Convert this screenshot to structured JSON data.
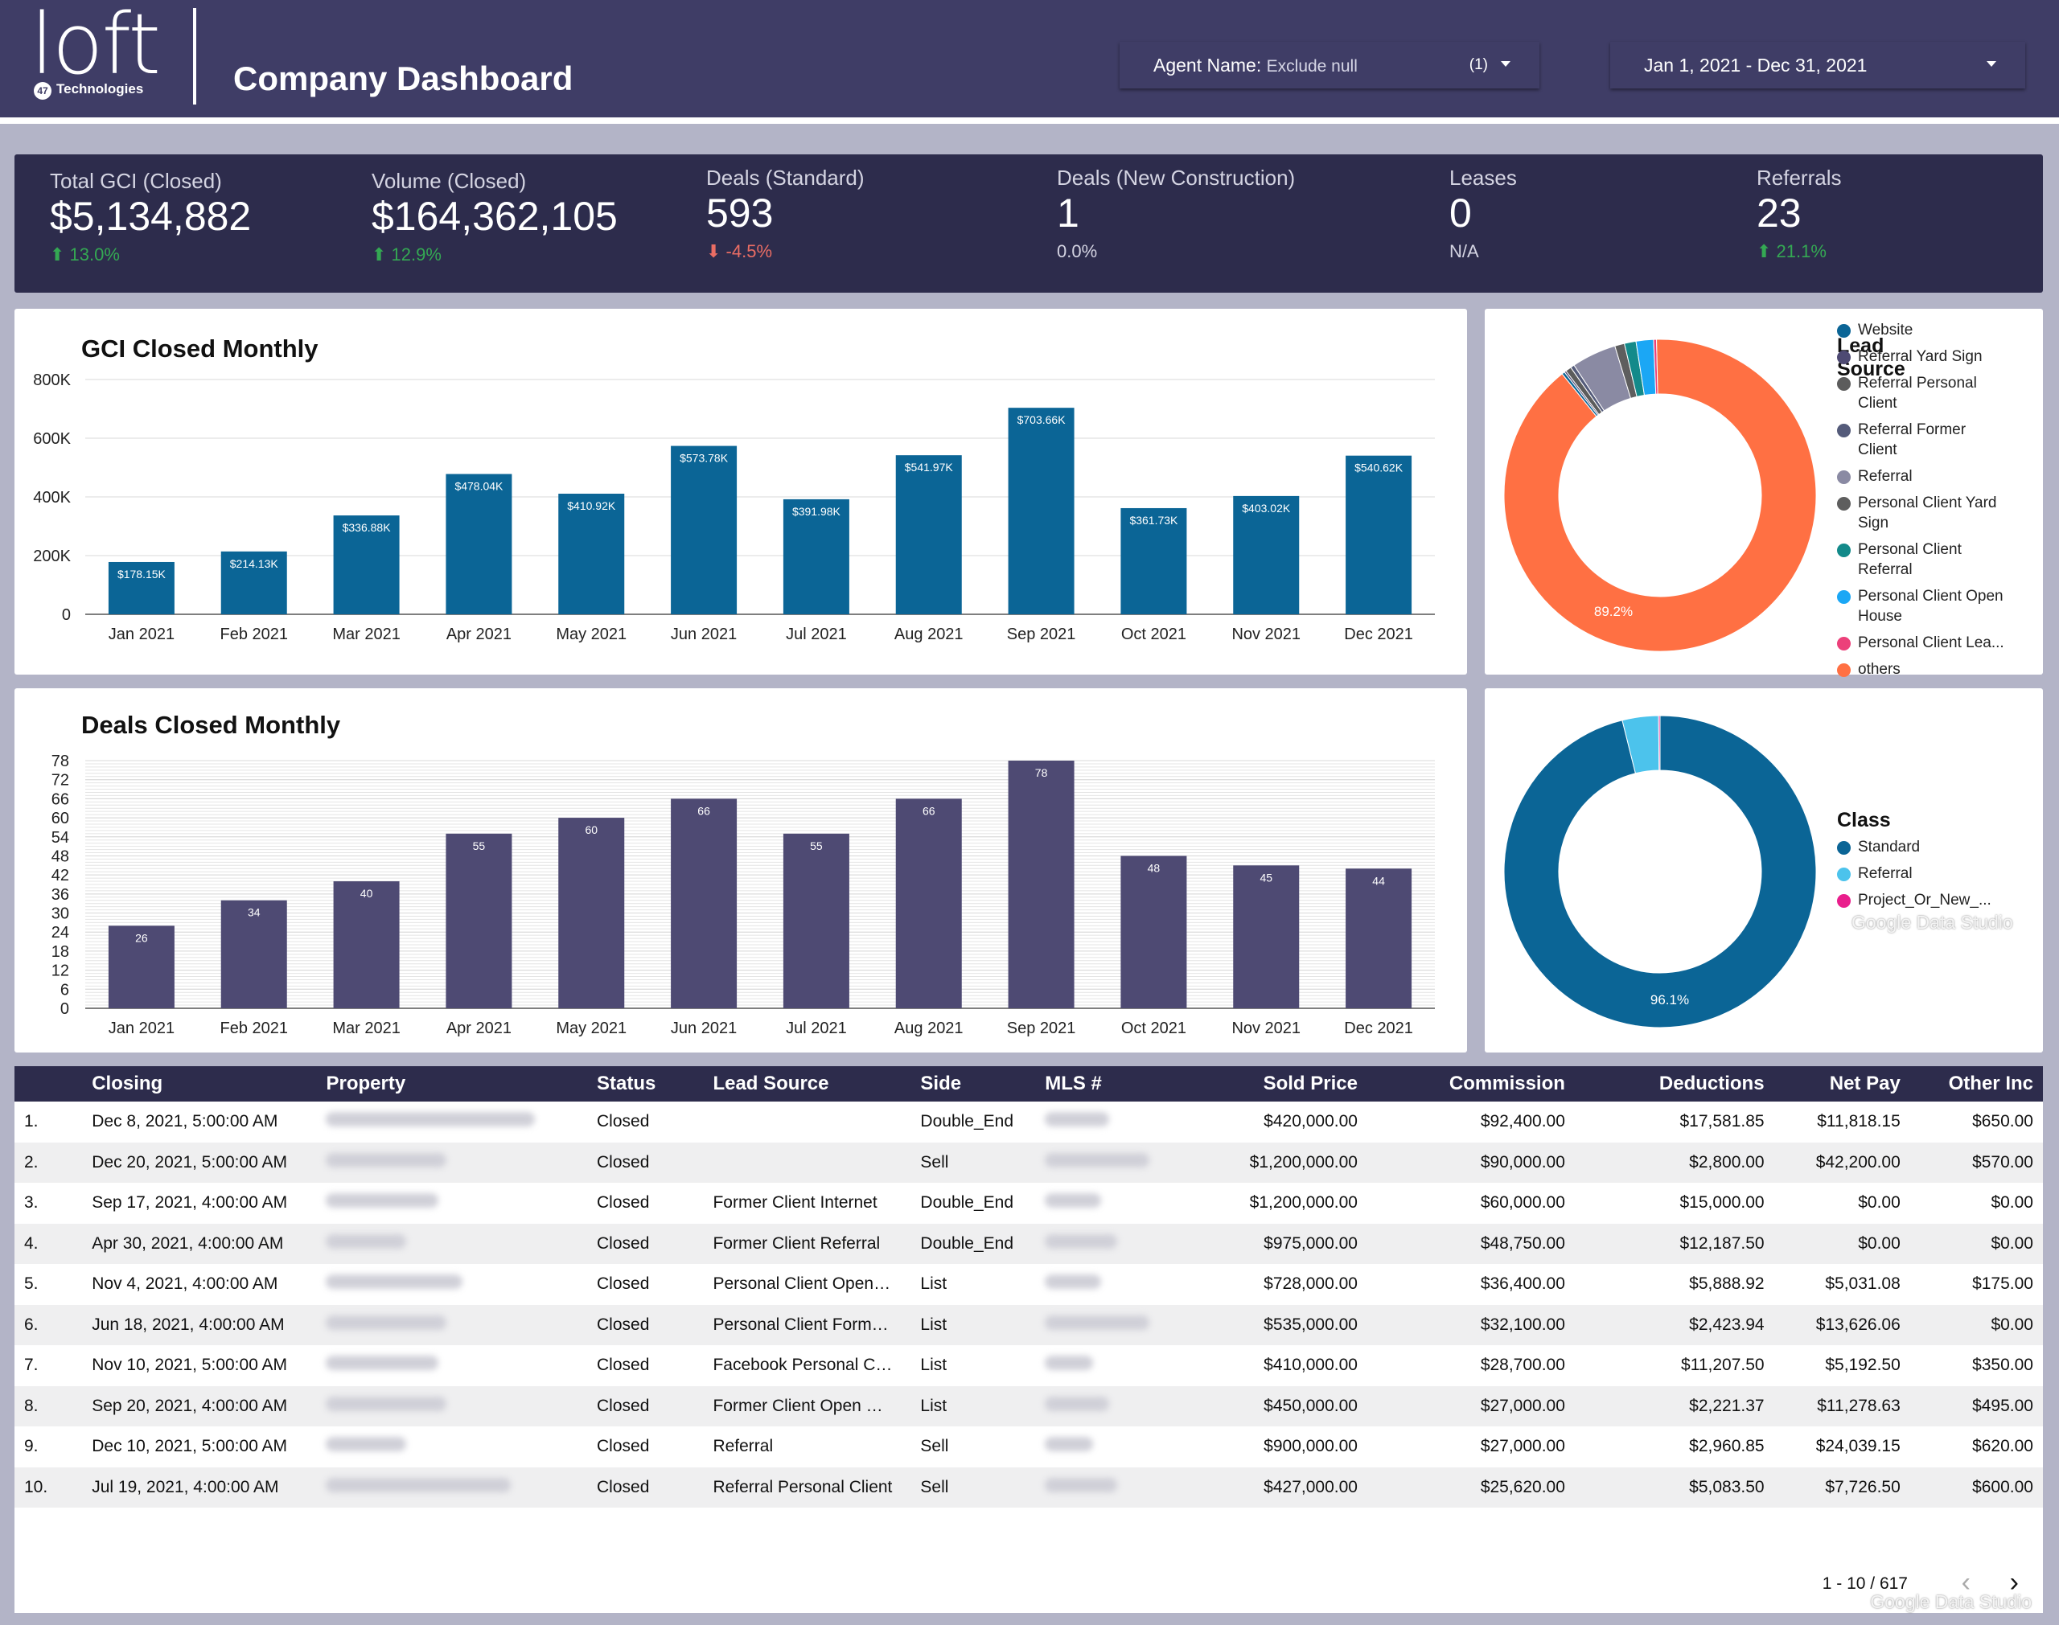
{
  "header": {
    "logo_text": "loft",
    "logo_badge": "47",
    "logo_subtitle": "Technologies",
    "title": "Company Dashboard",
    "agent_filter_label": "Agent Name:",
    "agent_filter_value": "Exclude null",
    "agent_filter_count": "(1)",
    "date_range": "Jan 1, 2021 - Dec 31, 2021"
  },
  "kpis": [
    {
      "label": "Total GCI (Closed)",
      "value": "$5,134,882",
      "change": "13.0%",
      "trend": "up"
    },
    {
      "label": "Volume (Closed)",
      "value": "$164,362,105",
      "change": "12.9%",
      "trend": "up"
    },
    {
      "label": "Deals (Standard)",
      "value": "593",
      "change": "-4.5%",
      "trend": "down"
    },
    {
      "label": "Deals (New Construction)",
      "value": "1",
      "change": "0.0%",
      "trend": "neutral"
    },
    {
      "label": "Leases",
      "value": "0",
      "change": "N/A",
      "trend": "neutral"
    },
    {
      "label": "Referrals",
      "value": "23",
      "change": "21.1%",
      "trend": "up"
    }
  ],
  "chart_data": [
    {
      "id": "gci",
      "type": "bar",
      "title": "GCI Closed Monthly",
      "categories": [
        "Jan 2021",
        "Feb 2021",
        "Mar 2021",
        "Apr 2021",
        "May 2021",
        "Jun 2021",
        "Jul 2021",
        "Aug 2021",
        "Sep 2021",
        "Oct 2021",
        "Nov 2021",
        "Dec 2021"
      ],
      "values": [
        178150,
        214130,
        336880,
        478040,
        410920,
        573780,
        391980,
        541970,
        703660,
        361730,
        403020,
        540620
      ],
      "data_labels": [
        "$178.15K",
        "$214.13K",
        "$336.88K",
        "$478.04K",
        "$410.92K",
        "$573.78K",
        "$391.98K",
        "$541.97K",
        "$703.66K",
        "$361.73K",
        "$403.02K",
        "$540.62K"
      ],
      "ylim": [
        0,
        800000
      ],
      "yticks": [
        0,
        200000,
        400000,
        600000,
        800000
      ],
      "ytick_labels": [
        "0",
        "200K",
        "400K",
        "600K",
        "800K"
      ],
      "color": "#0b6596"
    },
    {
      "id": "deals",
      "type": "bar",
      "title": "Deals Closed Monthly",
      "categories": [
        "Jan 2021",
        "Feb 2021",
        "Mar 2021",
        "Apr 2021",
        "May 2021",
        "Jun 2021",
        "Jul 2021",
        "Aug 2021",
        "Sep 2021",
        "Oct 2021",
        "Nov 2021",
        "Dec 2021"
      ],
      "values": [
        26,
        34,
        40,
        55,
        60,
        66,
        55,
        66,
        78,
        48,
        45,
        44
      ],
      "ylim": [
        0,
        78
      ],
      "yticks": [
        0,
        6,
        12,
        18,
        24,
        30,
        36,
        42,
        48,
        54,
        60,
        66,
        72,
        78
      ],
      "color": "#4e4a73"
    },
    {
      "id": "lead-source",
      "type": "pie",
      "title": "Lead Source",
      "labels": [
        "Website",
        "Referral Yard Sign",
        "Referral Personal Client",
        "Referral Former Client",
        "Referral",
        "Personal Client Yard Sign",
        "Personal Client Referral",
        "Personal Client Open House",
        "Personal Client Lea...",
        "others"
      ],
      "values": [
        0.3,
        0.2,
        0.6,
        0.4,
        4.6,
        1.0,
        1.2,
        1.8,
        0.3,
        89.2
      ],
      "colors": [
        "#0b6596",
        "#4e4a73",
        "#5c5c5c",
        "#545b7a",
        "#8a8aa3",
        "#5e5e5e",
        "#138a8a",
        "#1ba7f5",
        "#ec407a",
        "#ff7043"
      ],
      "slice_label": "89.2%"
    },
    {
      "id": "class",
      "type": "pie",
      "title": "Class",
      "labels": [
        "Standard",
        "Referral",
        "Project_Or_New_..."
      ],
      "values": [
        96.1,
        3.75,
        0.15
      ],
      "colors": [
        "#0b6596",
        "#4cc3ec",
        "#e91e8c"
      ],
      "slice_label": "96.1%"
    }
  ],
  "watermark": "Google Data Studio",
  "table": {
    "columns": [
      "Closing",
      "Property",
      "Status",
      "Lead Source",
      "Side",
      "MLS #",
      "Sold Price",
      "Commission",
      "Deductions",
      "Net Pay",
      "Other Inc"
    ],
    "rows": [
      {
        "idx": "1.",
        "closing": "Dec 8, 2021, 5:00:00 AM",
        "status": "Closed",
        "lead_source": "",
        "side": "Double_End",
        "sold_price": "$420,000.00",
        "commission": "$92,400.00",
        "deductions": "$17,581.85",
        "net_pay": "$11,818.15",
        "other_inc": "$650.00"
      },
      {
        "idx": "2.",
        "closing": "Dec 20, 2021, 5:00:00 AM",
        "status": "Closed",
        "lead_source": "",
        "side": "Sell",
        "sold_price": "$1,200,000.00",
        "commission": "$90,000.00",
        "deductions": "$2,800.00",
        "net_pay": "$42,200.00",
        "other_inc": "$570.00"
      },
      {
        "idx": "3.",
        "closing": "Sep 17, 2021, 4:00:00 AM",
        "status": "Closed",
        "lead_source": "Former Client Internet",
        "side": "Double_End",
        "sold_price": "$1,200,000.00",
        "commission": "$60,000.00",
        "deductions": "$15,000.00",
        "net_pay": "$0.00",
        "other_inc": "$0.00"
      },
      {
        "idx": "4.",
        "closing": "Apr 30, 2021, 4:00:00 AM",
        "status": "Closed",
        "lead_source": "Former Client Referral",
        "side": "Double_End",
        "sold_price": "$975,000.00",
        "commission": "$48,750.00",
        "deductions": "$12,187.50",
        "net_pay": "$0.00",
        "other_inc": "$0.00"
      },
      {
        "idx": "5.",
        "closing": "Nov 4, 2021, 4:00:00 AM",
        "status": "Closed",
        "lead_source": "Personal Client Open…",
        "side": "List",
        "sold_price": "$728,000.00",
        "commission": "$36,400.00",
        "deductions": "$5,888.92",
        "net_pay": "$5,031.08",
        "other_inc": "$175.00"
      },
      {
        "idx": "6.",
        "closing": "Jun 18, 2021, 4:00:00 AM",
        "status": "Closed",
        "lead_source": "Personal Client Form…",
        "side": "List",
        "sold_price": "$535,000.00",
        "commission": "$32,100.00",
        "deductions": "$2,423.94",
        "net_pay": "$13,626.06",
        "other_inc": "$0.00"
      },
      {
        "idx": "7.",
        "closing": "Nov 10, 2021, 5:00:00 AM",
        "status": "Closed",
        "lead_source": "Facebook Personal C…",
        "side": "List",
        "sold_price": "$410,000.00",
        "commission": "$28,700.00",
        "deductions": "$11,207.50",
        "net_pay": "$5,192.50",
        "other_inc": "$350.00"
      },
      {
        "idx": "8.",
        "closing": "Sep 20, 2021, 4:00:00 AM",
        "status": "Closed",
        "lead_source": "Former Client Open …",
        "side": "List",
        "sold_price": "$450,000.00",
        "commission": "$27,000.00",
        "deductions": "$2,221.37",
        "net_pay": "$11,278.63",
        "other_inc": "$495.00"
      },
      {
        "idx": "9.",
        "closing": "Dec 10, 2021, 5:00:00 AM",
        "status": "Closed",
        "lead_source": "Referral",
        "side": "Sell",
        "sold_price": "$900,000.00",
        "commission": "$27,000.00",
        "deductions": "$2,960.85",
        "net_pay": "$24,039.15",
        "other_inc": "$620.00"
      },
      {
        "idx": "10.",
        "closing": "Jul 19, 2021, 4:00:00 AM",
        "status": "Closed",
        "lead_source": "Referral Personal Client",
        "side": "Sell",
        "sold_price": "$427,000.00",
        "commission": "$25,620.00",
        "deductions": "$5,083.50",
        "net_pay": "$7,726.50",
        "other_inc": "$600.00"
      }
    ],
    "pagination": "1 - 10 / 617"
  }
}
